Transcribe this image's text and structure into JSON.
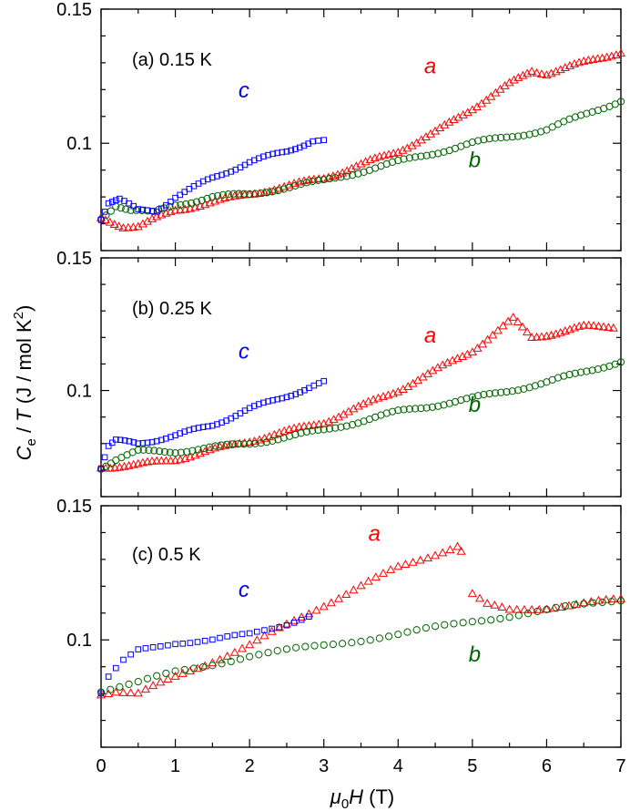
{
  "chart_data": {
    "type": "scatter",
    "shared_x_axis": {
      "label_prefix": "μ",
      "label_sub": "0",
      "label_var": "H",
      "label_suffix": " (T)",
      "xlim": [
        0,
        7
      ],
      "ticks": [
        0,
        1,
        2,
        3,
        4,
        5,
        6,
        7
      ],
      "tick_labels": [
        "0",
        "1",
        "2",
        "3",
        "4",
        "5",
        "6",
        "7"
      ]
    },
    "shared_y_axis": {
      "label_main": "C",
      "label_sub": "e",
      "label_mid": " / ",
      "label_var": "T",
      "label_unit": " (J / mol K",
      "label_sup": "2",
      "label_close": ")"
    },
    "colors": {
      "a": "#ff0000",
      "b": "#006400",
      "c": "#0000ff"
    },
    "marker_shapes": {
      "a": "triangle",
      "b": "circle",
      "c": "square"
    },
    "panels": [
      {
        "label": "(a) 0.15 K",
        "ylim": [
          0.06,
          0.15
        ],
        "ticks": [
          0.1,
          0.15
        ],
        "tick_labels": [
          "0.1",
          "0.15"
        ],
        "series_labels": [
          {
            "key": "c",
            "text": "c",
            "x": 1.85,
            "y": 0.117
          },
          {
            "key": "a",
            "text": "a",
            "x": 4.35,
            "y": 0.126
          },
          {
            "key": "b",
            "text": "b",
            "x": 4.95,
            "y": 0.091
          }
        ],
        "series": [
          {
            "key": "a",
            "points": [
              [
                0,
                0.072
              ],
              [
                0.3,
                0.069
              ],
              [
                0.5,
                0.069
              ],
              [
                1.0,
                0.075
              ],
              [
                2.0,
                0.081
              ],
              [
                3.0,
                0.087
              ],
              [
                3.5,
                0.092
              ],
              [
                4.0,
                0.097
              ],
              [
                4.5,
                0.104
              ],
              [
                5.0,
                0.113
              ],
              [
                5.5,
                0.122
              ],
              [
                5.8,
                0.127
              ],
              [
                6.0,
                0.126
              ],
              [
                6.5,
                0.13
              ],
              [
                7.0,
                0.134
              ]
            ]
          },
          {
            "key": "b",
            "points": [
              [
                0,
                0.072
              ],
              [
                0.2,
                0.077
              ],
              [
                0.4,
                0.075
              ],
              [
                0.7,
                0.074
              ],
              [
                1.0,
                0.077
              ],
              [
                1.5,
                0.08
              ],
              [
                2.0,
                0.081
              ],
              [
                3.0,
                0.086
              ],
              [
                4.0,
                0.093
              ],
              [
                5.0,
                0.1
              ],
              [
                6.0,
                0.105
              ],
              [
                7.0,
                0.116
              ]
            ]
          },
          {
            "key": "c",
            "points": [
              [
                0,
                0.072
              ],
              [
                0.1,
                0.078
              ],
              [
                0.25,
                0.079
              ],
              [
                0.5,
                0.075
              ],
              [
                0.75,
                0.075
              ],
              [
                1.0,
                0.08
              ],
              [
                1.5,
                0.087
              ],
              [
                2.0,
                0.093
              ],
              [
                2.5,
                0.097
              ],
              [
                2.85,
                0.101
              ],
              [
                3.0,
                0.101
              ]
            ]
          }
        ]
      },
      {
        "label": "(b) 0.25 K",
        "ylim": [
          0.06,
          0.15
        ],
        "ticks": [
          0.1,
          0.15
        ],
        "tick_labels": [
          "0.1",
          "0.15"
        ],
        "series_labels": [
          {
            "key": "c",
            "text": "c",
            "x": 1.85,
            "y": 0.112
          },
          {
            "key": "a",
            "text": "a",
            "x": 4.35,
            "y": 0.118
          },
          {
            "key": "b",
            "text": "b",
            "x": 4.95,
            "y": 0.092
          }
        ],
        "series": [
          {
            "key": "a",
            "points": [
              [
                0,
                0.071
              ],
              [
                0.5,
                0.072
              ],
              [
                1.0,
                0.074
              ],
              [
                2.0,
                0.081
              ],
              [
                3.0,
                0.088
              ],
              [
                4.0,
                0.1
              ],
              [
                5.0,
                0.115
              ],
              [
                5.55,
                0.127
              ],
              [
                5.8,
                0.12
              ],
              [
                6.0,
                0.121
              ],
              [
                6.5,
                0.124
              ],
              [
                6.9,
                0.124
              ]
            ]
          },
          {
            "key": "b",
            "points": [
              [
                0,
                0.071
              ],
              [
                0.2,
                0.074
              ],
              [
                0.5,
                0.077
              ],
              [
                1.0,
                0.077
              ],
              [
                2.0,
                0.08
              ],
              [
                3.0,
                0.085
              ],
              [
                4.0,
                0.092
              ],
              [
                5.0,
                0.097
              ],
              [
                6.0,
                0.103
              ],
              [
                7.0,
                0.111
              ]
            ]
          },
          {
            "key": "c",
            "points": [
              [
                0,
                0.071
              ],
              [
                0.1,
                0.079
              ],
              [
                0.2,
                0.081
              ],
              [
                0.5,
                0.08
              ],
              [
                1.0,
                0.083
              ],
              [
                1.5,
                0.087
              ],
              [
                2.0,
                0.093
              ],
              [
                2.5,
                0.098
              ],
              [
                2.8,
                0.101
              ],
              [
                3.0,
                0.103
              ]
            ]
          }
        ]
      },
      {
        "label": "(c) 0.5 K",
        "ylim": [
          0.06,
          0.15
        ],
        "ticks": [
          0.1,
          0.15
        ],
        "tick_labels": [
          "0.1",
          "0.15"
        ],
        "series_labels": [
          {
            "key": "a",
            "text": "a",
            "x": 3.6,
            "y": 0.137
          },
          {
            "key": "c",
            "text": "c",
            "x": 1.85,
            "y": 0.116
          },
          {
            "key": "b",
            "text": "b",
            "x": 4.95,
            "y": 0.092
          }
        ],
        "series": [
          {
            "key": "a",
            "points": [
              [
                0,
                0.08
              ],
              [
                0.2,
                0.081
              ],
              [
                0.5,
                0.08
              ],
              [
                1.0,
                0.086
              ],
              [
                2.0,
                0.098
              ],
              [
                3.0,
                0.113
              ],
              [
                4.0,
                0.127
              ],
              [
                4.5,
                0.132
              ],
              [
                4.8,
                0.135
              ],
              [
                4.85,
                0.133
              ],
              [
                5.0,
                0.117
              ],
              [
                5.2,
                0.113
              ],
              [
                5.5,
                0.111
              ],
              [
                6.0,
                0.112
              ],
              [
                7.0,
                0.115
              ]
            ]
          },
          {
            "key": "b",
            "points": [
              [
                0,
                0.081
              ],
              [
                0.5,
                0.084
              ],
              [
                1.0,
                0.088
              ],
              [
                2.0,
                0.094
              ],
              [
                3.0,
                0.098
              ],
              [
                4.0,
                0.102
              ],
              [
                5.0,
                0.107
              ],
              [
                6.0,
                0.111
              ],
              [
                7.0,
                0.115
              ]
            ]
          },
          {
            "key": "c",
            "points": [
              [
                0,
                0.08
              ],
              [
                0.1,
                0.086
              ],
              [
                0.3,
                0.092
              ],
              [
                0.5,
                0.096
              ],
              [
                1.0,
                0.099
              ],
              [
                1.5,
                0.1
              ],
              [
                2.0,
                0.102
              ],
              [
                2.5,
                0.106
              ],
              [
                2.8,
                0.109
              ]
            ]
          }
        ]
      }
    ]
  }
}
